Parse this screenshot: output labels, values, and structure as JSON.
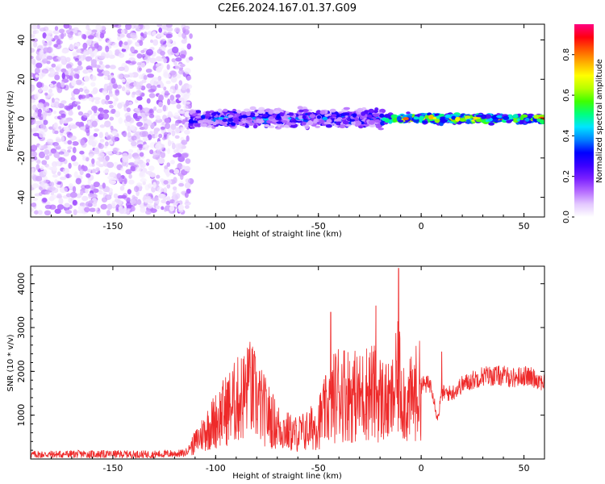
{
  "title": "C2E6.2024.167.01.37.G09",
  "chart_data": [
    {
      "type": "heatmap",
      "xlabel": "Height of straight line (km)",
      "ylabel": "Frequency (Hz)",
      "xlim": [
        -190,
        60
      ],
      "ylim": [
        -50,
        48
      ],
      "x_ticks": [
        -150,
        -100,
        -50,
        0,
        50
      ],
      "y_ticks": [
        -40,
        -20,
        0,
        20,
        40
      ],
      "colorbar": {
        "label": "Normalized spectral amplitude",
        "range": [
          0.0,
          0.95
        ],
        "ticks": [
          0.0,
          0.2,
          0.4,
          0.6,
          0.8
        ],
        "colors": [
          "#ffffff",
          "#e3c8ff",
          "#b56bff",
          "#7a1fff",
          "#3a00ff",
          "#0000ff",
          "#0080ff",
          "#00e5ff",
          "#00ff7f",
          "#40ff00",
          "#b8ff00",
          "#ffff00",
          "#ffb000",
          "#ff5a00",
          "#ff0010",
          "#ff0080"
        ]
      },
      "regions": [
        {
          "x_range": [
            -190,
            -112
          ],
          "freq_range": [
            -48,
            48
          ],
          "amplitude": [
            0.02,
            0.15
          ]
        },
        {
          "x_range": [
            -112,
            -18
          ],
          "freq_center": 0,
          "freq_half_width": 6,
          "amplitude": [
            0.1,
            0.45
          ]
        },
        {
          "x_range": [
            -18,
            60
          ],
          "freq_center": 0,
          "freq_half_width": 3,
          "amplitude": [
            0.3,
            0.9
          ]
        }
      ]
    },
    {
      "type": "line",
      "xlabel": "Height of straight line (km)",
      "ylabel": "SNR (10 * v/v)",
      "xlim": [
        -190,
        60
      ],
      "ylim": [
        0,
        4400
      ],
      "x_ticks": [
        -150,
        -100,
        -50,
        0,
        50
      ],
      "y_ticks": [
        1000,
        2000,
        3000,
        4000
      ],
      "color": "#ee2a2a",
      "series": [
        {
          "x": [
            -190,
            -170,
            -150,
            -130,
            -115,
            -110,
            -105,
            -95,
            -88,
            -83,
            -78,
            -70,
            -62,
            -55,
            -50,
            -45,
            -40,
            -35,
            -30,
            -25,
            -20,
            -15,
            -11,
            -7,
            -3,
            0,
            5,
            8,
            10,
            15,
            20,
            25,
            30,
            35,
            40,
            45,
            50,
            55,
            60
          ],
          "y": [
            100,
            110,
            110,
            105,
            130,
            400,
            700,
            1200,
            1500,
            1700,
            1300,
            800,
            600,
            700,
            900,
            1300,
            1700,
            1600,
            1500,
            1700,
            1500,
            1300,
            2000,
            1300,
            1600,
            1700,
            1700,
            900,
            1500,
            1500,
            1700,
            1800,
            1900,
            1900,
            1900,
            1850,
            1900,
            1850,
            1750
          ],
          "peaks": [
            {
              "x": -84,
              "y": 2500
            },
            {
              "x": -44,
              "y": 3350
            },
            {
              "x": -22,
              "y": 3500
            },
            {
              "x": -11,
              "y": 4350
            },
            {
              "x": 10,
              "y": 2450
            }
          ]
        }
      ]
    }
  ]
}
